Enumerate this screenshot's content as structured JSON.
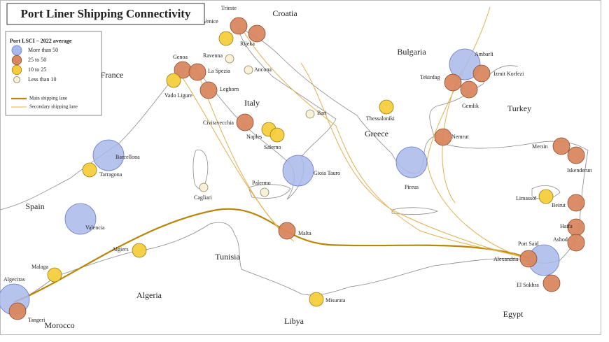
{
  "title": "Port Liner Shipping Connectivity",
  "legend": {
    "title": "Port LSCI – 2022 average",
    "items": [
      {
        "label": "More than 50",
        "color": "#a9b8ea",
        "stroke": "#6d7fc7",
        "ports": [
          "Barcellona",
          "Valencia",
          "Gioia Tauro",
          "Pireus",
          "Ambarli",
          "Port Said",
          "Algeciras"
        ]
      },
      {
        "label": "25 to 50",
        "color": "#d9875f",
        "stroke": "#8a4a2e",
        "ports": [
          "Trieste",
          "Rijeka",
          "Genoa",
          "La Spezia",
          "Leghorn",
          "Civitavecchia",
          "Tekirdag",
          "Izmit Korfezi",
          "Gemlik",
          "Nemrut",
          "Mersin",
          "Iskenderun",
          "Beirut",
          "Haifa",
          "Ashod",
          "Malta",
          "El Sokhra",
          "Alexandria",
          "Tangeri"
        ]
      },
      {
        "label": "10 to 25",
        "color": "#f5cd3c",
        "stroke": "#9a7d10",
        "ports": [
          "Venice",
          "Vado Ligure",
          "Naples",
          "Salerno",
          "Thessaloniki",
          "Tarragona",
          "Limassol",
          "Algiers",
          "Malaga",
          "Misurata"
        ]
      },
      {
        "label": "Less than 10",
        "color": "#f7f0d5",
        "stroke": "#8a8060",
        "ports": [
          "Ravenna",
          "Ancona",
          "Bari",
          "Cagliari",
          "Palermo"
        ]
      }
    ],
    "lanes": [
      {
        "label": "Main shipping lane",
        "color": "#b8860b"
      },
      {
        "label": "Secondary shipping lane",
        "color": "#e0b050"
      }
    ]
  },
  "countries": [
    "Croatia",
    "Bulgaria",
    "France",
    "Italy",
    "Greece",
    "Turkey",
    "Spain",
    "Tunisia",
    "Algeria",
    "Libya",
    "Egypt",
    "Morocco"
  ]
}
